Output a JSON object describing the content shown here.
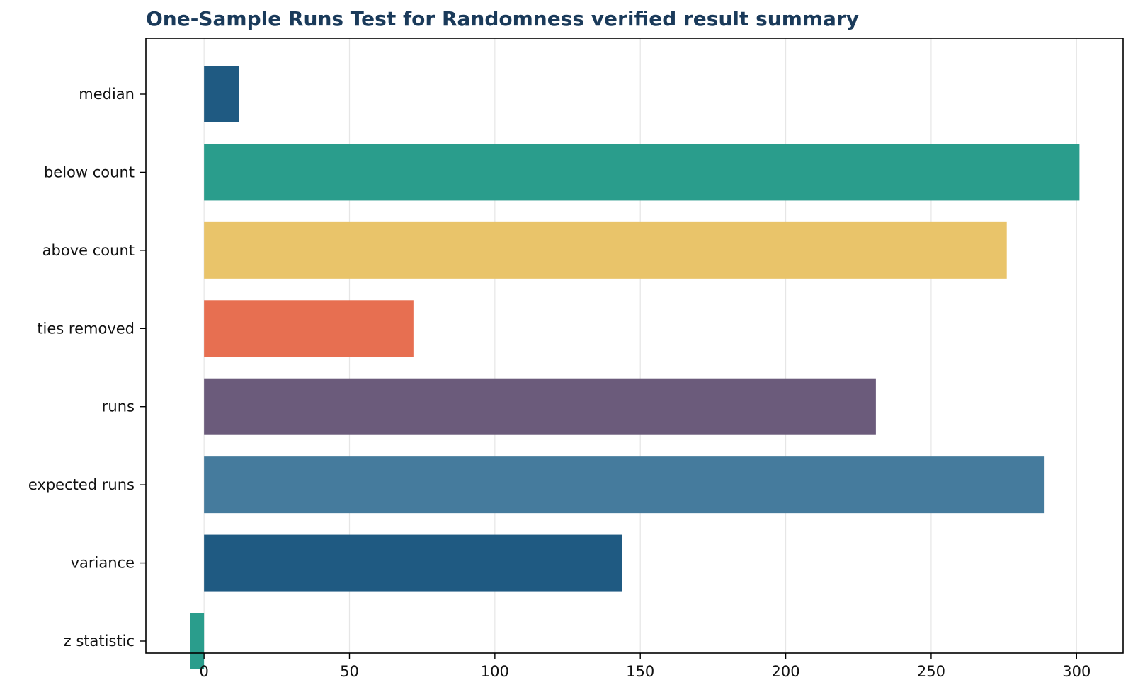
{
  "chart_data": {
    "type": "bar",
    "orientation": "horizontal",
    "title": "One-Sample Runs Test for Randomness verified result summary",
    "xlabel": "",
    "ylabel": "",
    "categories": [
      "median",
      "below count",
      "above count",
      "ties removed",
      "runs",
      "expected runs",
      "variance",
      "z statistic"
    ],
    "values": [
      12,
      301,
      276,
      72,
      231,
      289,
      143.7,
      -4.8
    ],
    "colors": [
      "#1f5a82",
      "#2a9d8c",
      "#e9c46a",
      "#e76f51",
      "#6b5b7b",
      "#457b9d",
      "#1f5a82",
      "#2a9d8c"
    ],
    "xlim": [
      -20,
      316
    ],
    "xticks": [
      0,
      50,
      100,
      150,
      200,
      250,
      300
    ],
    "grid": "x",
    "legend": "none"
  }
}
